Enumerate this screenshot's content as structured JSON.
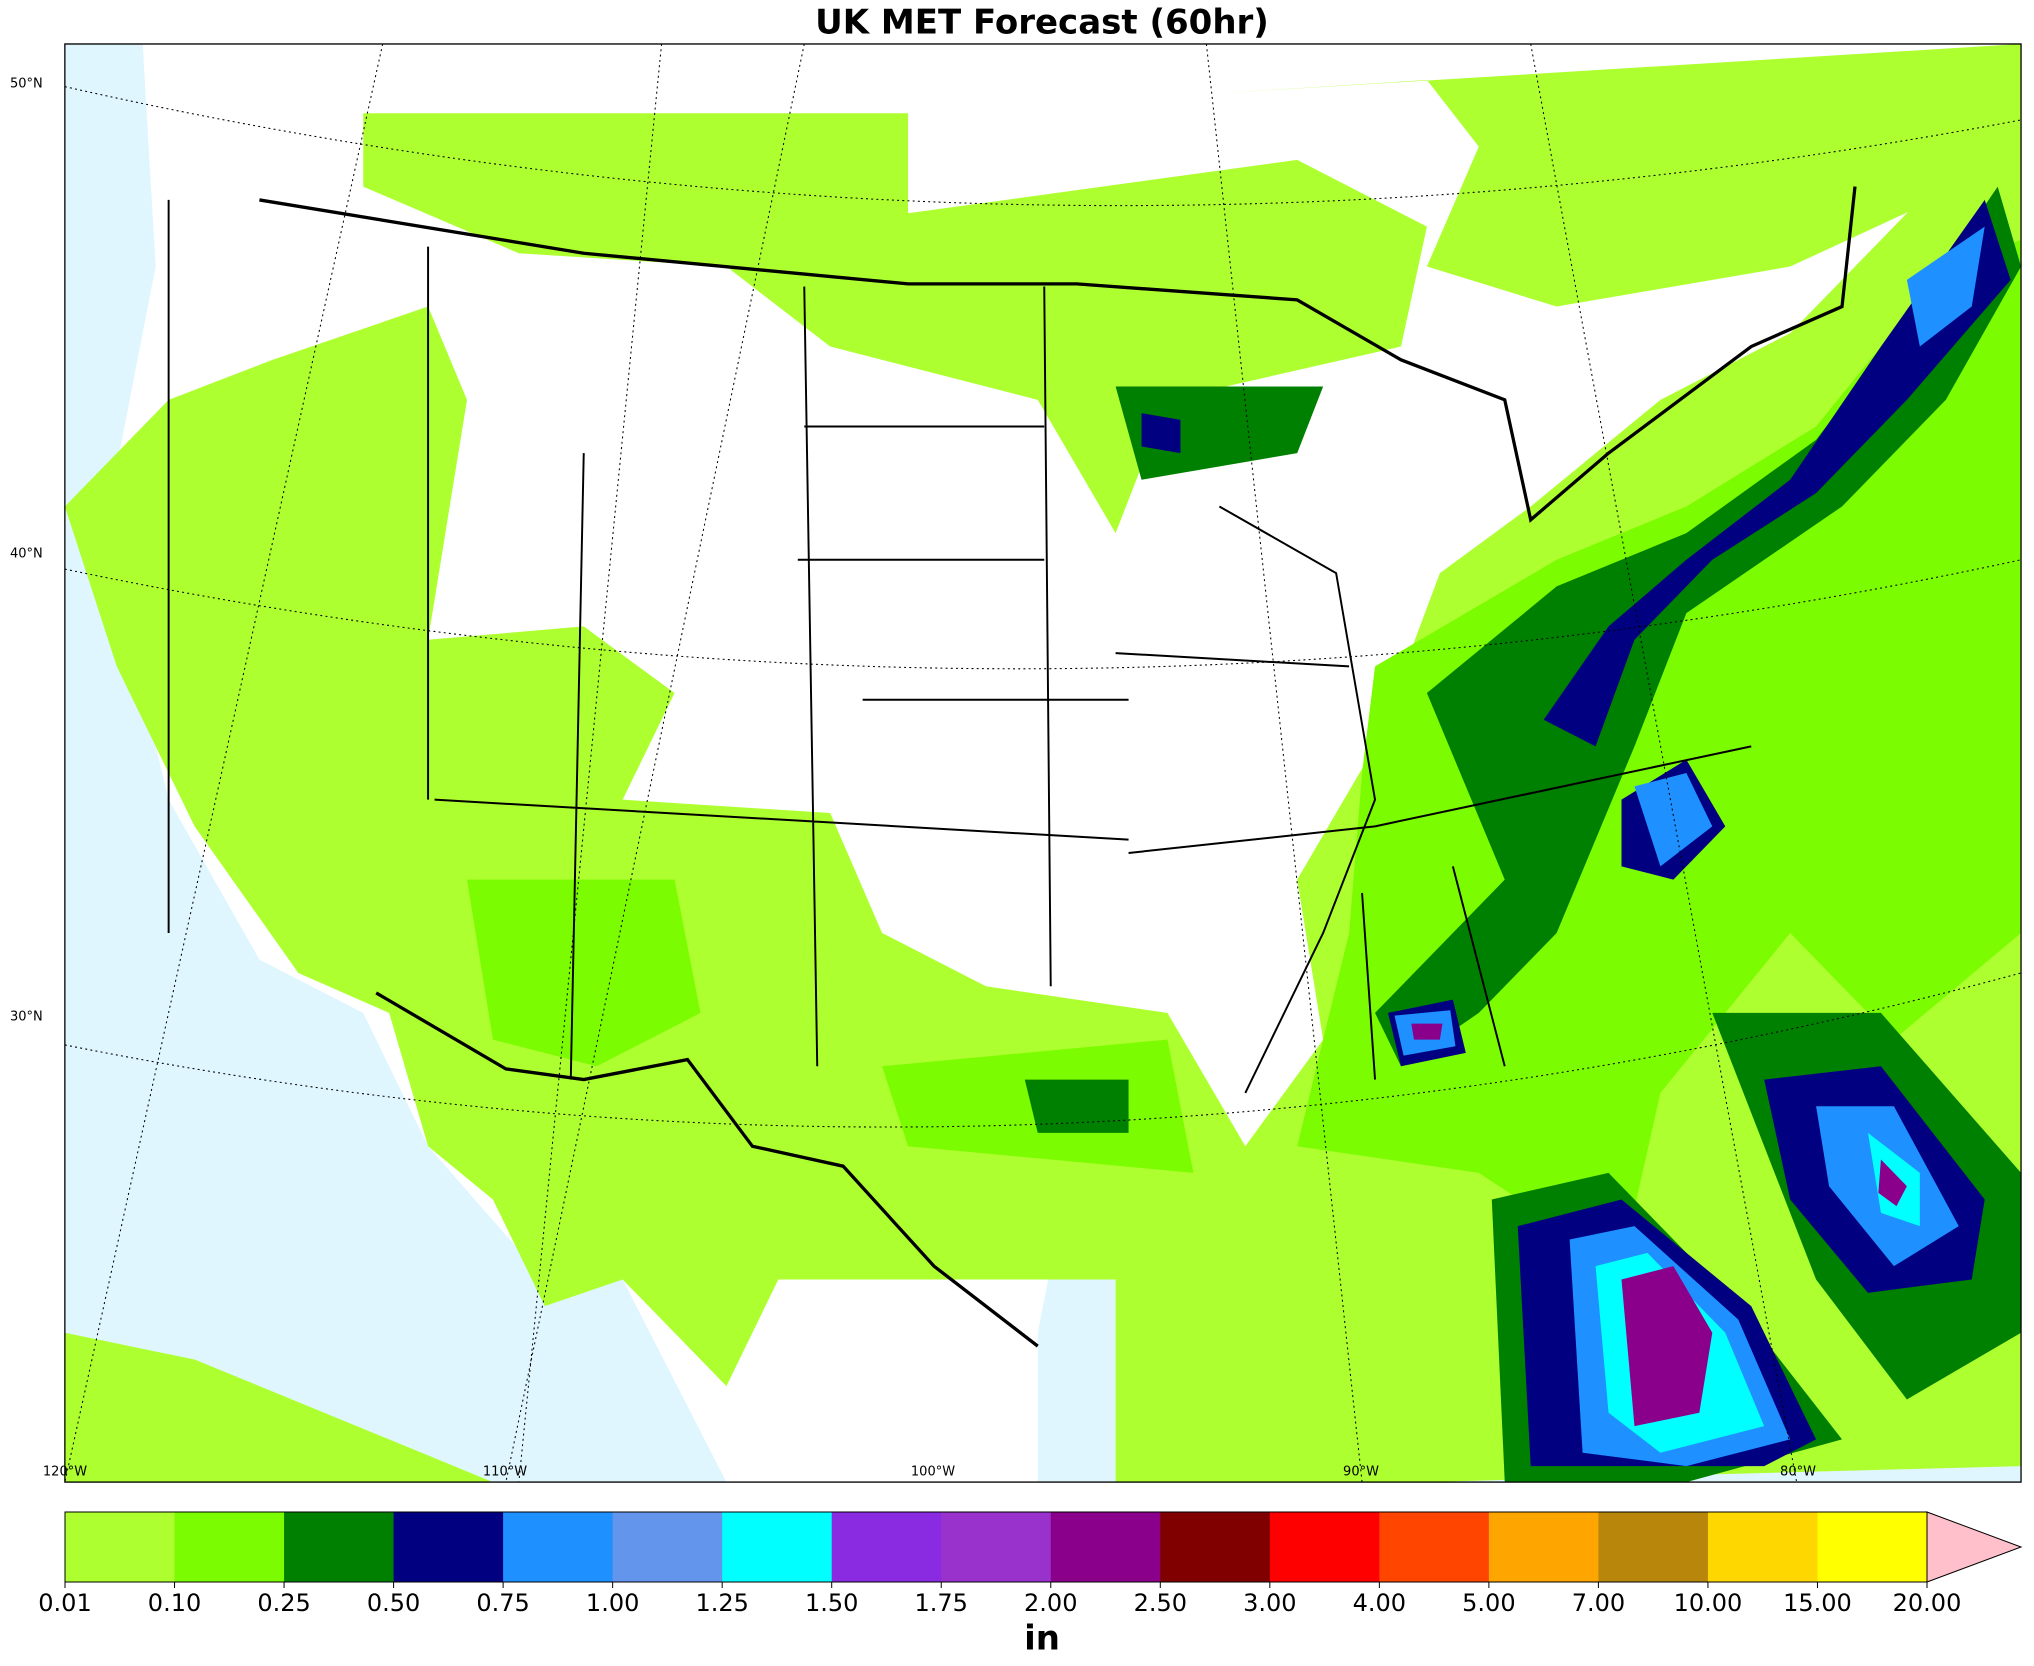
{
  "title": "UK MET Forecast (60hr)",
  "map": {
    "lat_labels": [
      "50°N",
      "40°N",
      "30°N"
    ],
    "lon_labels": [
      "120°W",
      "110°W",
      "100°W",
      "90°W",
      "80°W"
    ]
  },
  "colorbar": {
    "levels": [
      "0.01",
      "0.10",
      "0.25",
      "0.50",
      "0.75",
      "1.00",
      "1.25",
      "1.50",
      "1.75",
      "2.00",
      "2.50",
      "3.00",
      "4.00",
      "5.00",
      "7.00",
      "10.00",
      "15.00",
      "20.00"
    ],
    "colors": [
      "#adff2f",
      "#7cfc00",
      "#008000",
      "#000080",
      "#1e90ff",
      "#6495ed",
      "#00ffff",
      "#8a2be2",
      "#9932cc",
      "#8b008b",
      "#800000",
      "#ff0000",
      "#ff4500",
      "#ffa500",
      "#b8860b",
      "#ffd700",
      "#ffff00"
    ],
    "extend_color": "#ffc0cb",
    "unit": "in"
  }
}
